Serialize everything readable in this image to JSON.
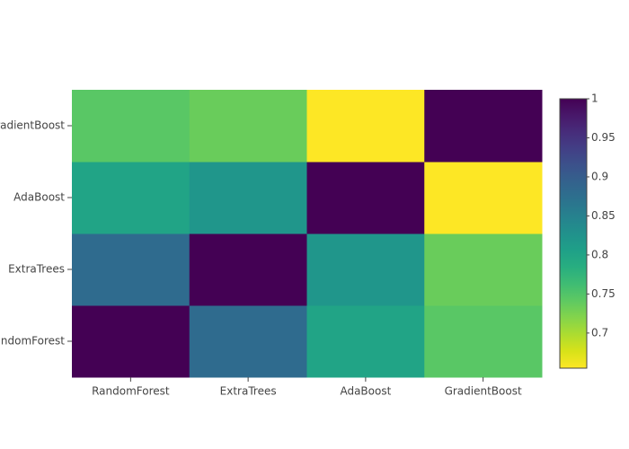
{
  "chart_data": {
    "type": "heatmap",
    "x": [
      "RandomForest",
      "ExtraTrees",
      "AdaBoost",
      "GradientBoost"
    ],
    "y": [
      "RandomForest",
      "ExtraTrees",
      "AdaBoost",
      "GradientBoost"
    ],
    "z": [
      [
        1,
        0.88,
        0.8,
        0.745
      ],
      [
        0.88,
        1,
        0.82,
        0.735
      ],
      [
        0.8,
        0.82,
        1,
        0.655
      ],
      [
        0.745,
        0.735,
        0.655,
        1
      ]
    ],
    "zlim": [
      0.655,
      1
    ],
    "colorbar_ticks": [
      0.7,
      0.75,
      0.8,
      0.85,
      0.9,
      0.95,
      1
    ],
    "colorscale": [
      "#fde725",
      "#d8e219",
      "#addc30",
      "#84d44b",
      "#5ec962",
      "#3fbc73",
      "#28ae80",
      "#1fa088",
      "#21918c",
      "#26828e",
      "#2c728e",
      "#33638d",
      "#3b528b",
      "#424086",
      "#472d7b",
      "#48186a",
      "#440154"
    ]
  }
}
